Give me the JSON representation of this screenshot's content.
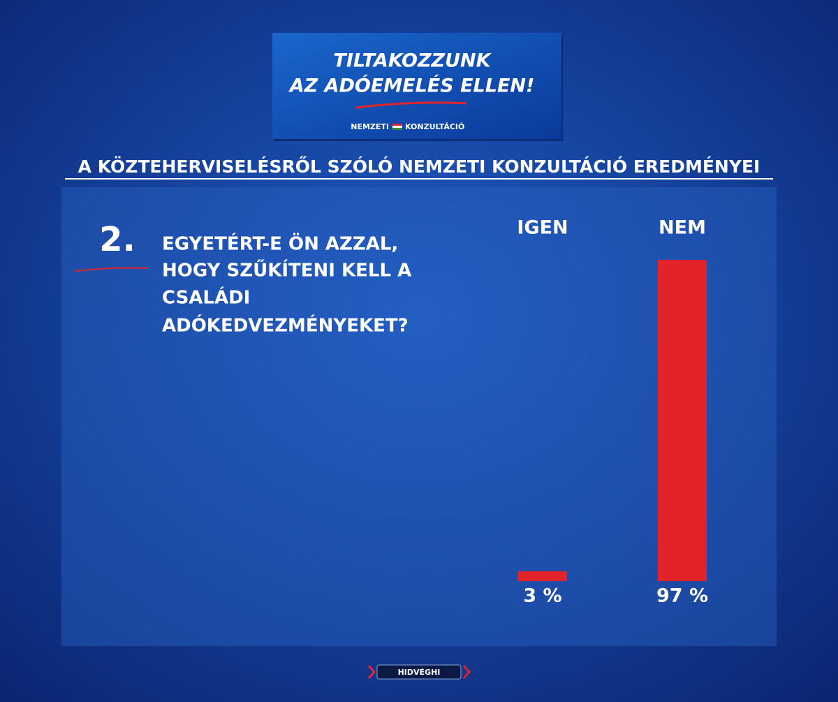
{
  "banner": {
    "title_lines": [
      "TILTAKOZZUNK",
      "AZ ADÓEMELÉS ELLEN!"
    ],
    "subtitle_left": "NEMZETI",
    "subtitle_right": "KONZULTÁCIÓ"
  },
  "heading": "A KÖZTEHERVISELÉSRŐL SZÓLÓ NEMZETI KONZULTÁCIÓ EREDMÉNYEI",
  "question": {
    "number": "2.",
    "lines": [
      "EGYETÉRT-E ÖN AZZAL,",
      "HOGY SZŰKÍTENI KELL A",
      "CSALÁDI",
      "ADÓKEDVEZMÉNYEKET?"
    ]
  },
  "chart_data": {
    "type": "bar",
    "categories": [
      "IGEN",
      "NEM"
    ],
    "values": [
      3,
      97
    ],
    "value_labels": [
      "3 %",
      "97 %"
    ],
    "color": "#e3232a"
  },
  "footer": "HIDVÉGHI"
}
